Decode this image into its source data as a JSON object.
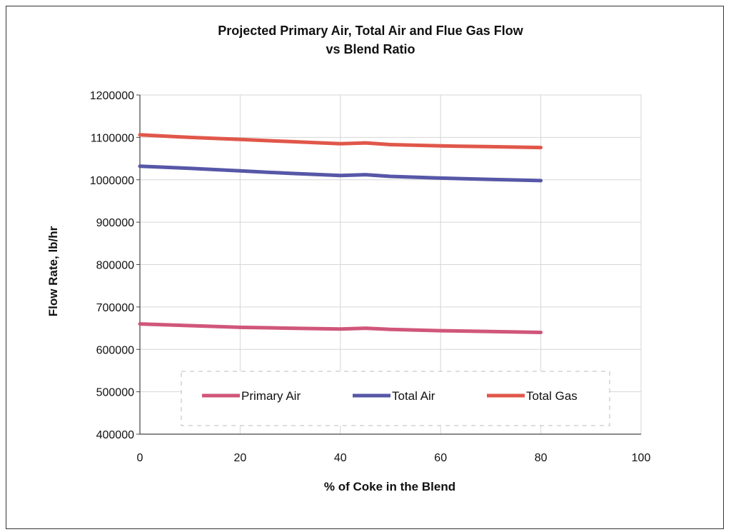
{
  "chart_data": {
    "type": "line",
    "title_line1": "Projected Primary Air, Total Air and Flue Gas Flow",
    "title_line2": "vs Blend Ratio",
    "xlabel": "% of Coke in the Blend",
    "ylabel": "Flow Rate, lb/hr",
    "xlim": [
      0,
      100
    ],
    "ylim": [
      400000,
      1200000
    ],
    "xticks": [
      "0",
      "20",
      "40",
      "60",
      "80",
      "100"
    ],
    "yticks": [
      "400000",
      "500000",
      "600000",
      "700000",
      "800000",
      "900000",
      "1000000",
      "1100000",
      "1200000"
    ],
    "grid": true,
    "legend_position": "bottom-inside",
    "series": [
      {
        "name": "Primary Air",
        "color": "#d0567a",
        "x": [
          0,
          10,
          20,
          30,
          40,
          45,
          50,
          60,
          70,
          80
        ],
        "y": [
          660000,
          656000,
          652000,
          650000,
          648000,
          650000,
          647000,
          644000,
          642000,
          640000
        ]
      },
      {
        "name": "Total Air",
        "color": "#5757a8",
        "x": [
          0,
          10,
          20,
          30,
          40,
          45,
          50,
          60,
          70,
          80
        ],
        "y": [
          1032000,
          1027000,
          1021000,
          1015000,
          1010000,
          1012000,
          1008000,
          1004000,
          1001000,
          998000
        ]
      },
      {
        "name": "Total Gas",
        "color": "#e0574a",
        "x": [
          0,
          10,
          20,
          30,
          40,
          45,
          50,
          60,
          70,
          80
        ],
        "y": [
          1106000,
          1100000,
          1095000,
          1090000,
          1085000,
          1087000,
          1083000,
          1080000,
          1078000,
          1076000
        ]
      }
    ]
  }
}
